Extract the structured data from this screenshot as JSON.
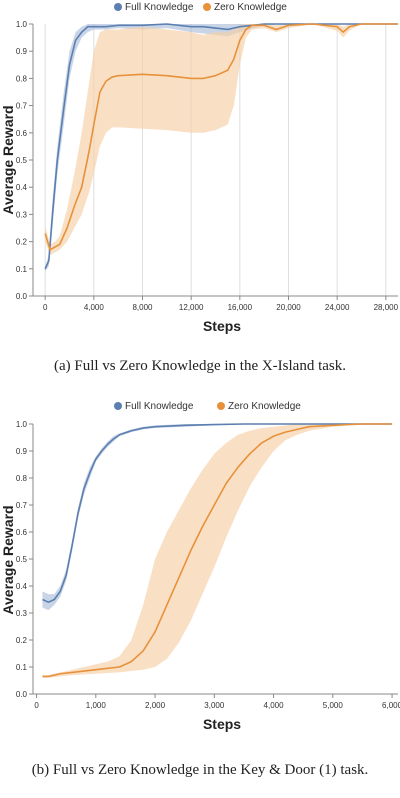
{
  "colors": {
    "full": "#5b7fb0",
    "zero": "#e8913b",
    "full_band": "#9cb3d4",
    "zero_band": "#f6cfa6"
  },
  "captions": [
    "(a) Full vs Zero Knowledge in the X-Island task.",
    "(b) Full vs Zero Knowledge in the Key & Door (1) task."
  ],
  "chart_data": [
    {
      "type": "line",
      "xlabel": "Steps",
      "ylabel": "Average Reward",
      "xlim": [
        -1000,
        29000
      ],
      "ylim": [
        0,
        1.0
      ],
      "xticks": [
        0,
        4000,
        8000,
        12000,
        16000,
        20000,
        24000,
        28000
      ],
      "xtick_labels": [
        "0",
        "4,000",
        "8,000",
        "12,000",
        "16,000",
        "20,000",
        "24,000",
        "28,000"
      ],
      "yticks": [
        0,
        0.1,
        0.2,
        0.3,
        0.4,
        0.5,
        0.6,
        0.7,
        0.8,
        0.9,
        1.0
      ],
      "ytick_labels": [
        "0.0",
        "0.1",
        "0.2",
        "0.3",
        "0.4",
        "0.5",
        "0.6",
        "0.7",
        "0.8",
        "0.9",
        "1.0"
      ],
      "grid": "vertical",
      "legend": "top-center",
      "series": [
        {
          "name": "Full Knowledge",
          "key": "full",
          "x": [
            0,
            300,
            600,
            1000,
            1500,
            2000,
            2500,
            3000,
            3500,
            4000,
            5000,
            6000,
            8000,
            10000,
            12000,
            13000,
            14000,
            15000,
            16000,
            18000,
            20000,
            22000,
            24000,
            26000,
            28000,
            29000
          ],
          "y": [
            0.1,
            0.13,
            0.3,
            0.5,
            0.68,
            0.85,
            0.94,
            0.97,
            0.99,
            0.99,
            0.99,
            0.995,
            0.995,
            1.0,
            0.99,
            0.99,
            0.985,
            0.98,
            0.99,
            1.0,
            1.0,
            1.0,
            1.0,
            1.0,
            1.0,
            1.0
          ],
          "lower": [
            0.09,
            0.11,
            0.25,
            0.45,
            0.62,
            0.8,
            0.9,
            0.95,
            0.97,
            0.98,
            0.98,
            0.985,
            0.98,
            0.985,
            0.97,
            0.965,
            0.96,
            0.955,
            0.97,
            0.995,
            1.0,
            1.0,
            1.0,
            1.0,
            1.0,
            1.0
          ],
          "upper": [
            0.11,
            0.15,
            0.35,
            0.55,
            0.74,
            0.9,
            0.97,
            0.99,
            1.0,
            1.0,
            1.0,
            1.0,
            1.0,
            1.0,
            1.0,
            1.0,
            1.0,
            1.0,
            1.0,
            1.0,
            1.0,
            1.0,
            1.0,
            1.0,
            1.0,
            1.0
          ]
        },
        {
          "name": "Zero Knowledge",
          "key": "zero",
          "x": [
            0,
            400,
            800,
            1200,
            1800,
            2400,
            3000,
            3600,
            4000,
            4500,
            5000,
            5500,
            6000,
            8000,
            10000,
            12000,
            13000,
            14000,
            15000,
            15500,
            16000,
            16500,
            17000,
            18000,
            19000,
            20000,
            22000,
            24000,
            24500,
            25000,
            26000,
            28000,
            29000
          ],
          "y": [
            0.23,
            0.17,
            0.18,
            0.19,
            0.25,
            0.33,
            0.4,
            0.53,
            0.63,
            0.75,
            0.79,
            0.805,
            0.81,
            0.815,
            0.81,
            0.8,
            0.8,
            0.81,
            0.83,
            0.87,
            0.94,
            0.98,
            0.995,
            0.995,
            0.98,
            0.995,
            1.0,
            0.99,
            0.97,
            0.99,
            1.0,
            1.0,
            1.0
          ],
          "lower": [
            0.2,
            0.15,
            0.16,
            0.17,
            0.2,
            0.25,
            0.3,
            0.38,
            0.45,
            0.55,
            0.6,
            0.62,
            0.62,
            0.615,
            0.61,
            0.6,
            0.6,
            0.61,
            0.63,
            0.7,
            0.85,
            0.95,
            0.98,
            0.985,
            0.97,
            0.985,
            1.0,
            0.975,
            0.95,
            0.975,
            1.0,
            1.0,
            1.0
          ],
          "upper": [
            0.26,
            0.19,
            0.2,
            0.22,
            0.32,
            0.45,
            0.6,
            0.78,
            0.9,
            0.97,
            0.98,
            0.98,
            0.98,
            0.99,
            0.98,
            0.97,
            0.96,
            0.97,
            0.97,
            0.98,
            0.995,
            1.0,
            1.0,
            1.0,
            0.995,
            1.0,
            1.0,
            1.0,
            0.99,
            1.0,
            1.0,
            1.0,
            1.0
          ]
        }
      ]
    },
    {
      "type": "line",
      "xlabel": "Steps",
      "ylabel": "Average Reward",
      "xlim": [
        -60,
        6100
      ],
      "ylim": [
        0,
        1.0
      ],
      "xticks": [
        0,
        1000,
        2000,
        3000,
        4000,
        5000,
        6000
      ],
      "xtick_labels": [
        "0",
        "1,000",
        "2,000",
        "3,000",
        "4,000",
        "5,000",
        "6,000"
      ],
      "yticks": [
        0,
        0.1,
        0.2,
        0.3,
        0.4,
        0.5,
        0.6,
        0.7,
        0.8,
        0.9,
        1.0
      ],
      "ytick_labels": [
        "0.0",
        "0.1",
        "0.2",
        "0.3",
        "0.4",
        "0.5",
        "0.6",
        "0.7",
        "0.8",
        "0.9",
        "1.0"
      ],
      "grid": "none",
      "legend": "top-center",
      "series": [
        {
          "name": "Full Knowledge",
          "key": "full",
          "x": [
            100,
            200,
            300,
            400,
            500,
            600,
            700,
            800,
            900,
            1000,
            1100,
            1200,
            1300,
            1400,
            1600,
            1800,
            2000,
            2500,
            3000,
            3500,
            4000,
            5000,
            6000
          ],
          "y": [
            0.35,
            0.34,
            0.35,
            0.38,
            0.44,
            0.55,
            0.67,
            0.76,
            0.82,
            0.87,
            0.9,
            0.925,
            0.945,
            0.96,
            0.975,
            0.985,
            0.99,
            0.995,
            0.998,
            1.0,
            1.0,
            1.0,
            1.0
          ],
          "lower": [
            0.32,
            0.31,
            0.33,
            0.36,
            0.42,
            0.53,
            0.65,
            0.74,
            0.8,
            0.86,
            0.89,
            0.915,
            0.935,
            0.955,
            0.97,
            0.98,
            0.985,
            0.99,
            0.995,
            1.0,
            1.0,
            1.0,
            1.0
          ],
          "upper": [
            0.38,
            0.37,
            0.37,
            0.4,
            0.46,
            0.57,
            0.69,
            0.78,
            0.84,
            0.88,
            0.91,
            0.935,
            0.955,
            0.965,
            0.98,
            0.99,
            0.995,
            1.0,
            1.0,
            1.0,
            1.0,
            1.0,
            1.0
          ]
        },
        {
          "name": "Zero Knowledge",
          "key": "zero",
          "x": [
            100,
            200,
            400,
            600,
            800,
            1000,
            1200,
            1400,
            1600,
            1800,
            2000,
            2200,
            2400,
            2600,
            2800,
            3000,
            3200,
            3400,
            3600,
            3800,
            4000,
            4200,
            4400,
            4600,
            5000,
            5500,
            6000
          ],
          "y": [
            0.065,
            0.065,
            0.075,
            0.08,
            0.085,
            0.09,
            0.095,
            0.1,
            0.12,
            0.16,
            0.23,
            0.33,
            0.43,
            0.53,
            0.62,
            0.7,
            0.78,
            0.84,
            0.89,
            0.93,
            0.955,
            0.97,
            0.98,
            0.99,
            0.995,
            1.0,
            1.0
          ],
          "lower": [
            0.06,
            0.06,
            0.065,
            0.07,
            0.072,
            0.075,
            0.078,
            0.08,
            0.085,
            0.09,
            0.1,
            0.13,
            0.19,
            0.27,
            0.37,
            0.47,
            0.58,
            0.68,
            0.77,
            0.84,
            0.9,
            0.94,
            0.96,
            0.975,
            0.99,
            1.0,
            1.0
          ],
          "upper": [
            0.07,
            0.07,
            0.08,
            0.09,
            0.1,
            0.11,
            0.12,
            0.14,
            0.2,
            0.33,
            0.5,
            0.6,
            0.68,
            0.76,
            0.83,
            0.89,
            0.93,
            0.96,
            0.975,
            0.985,
            0.99,
            0.995,
            1.0,
            1.0,
            1.0,
            1.0,
            1.0
          ]
        }
      ]
    }
  ]
}
